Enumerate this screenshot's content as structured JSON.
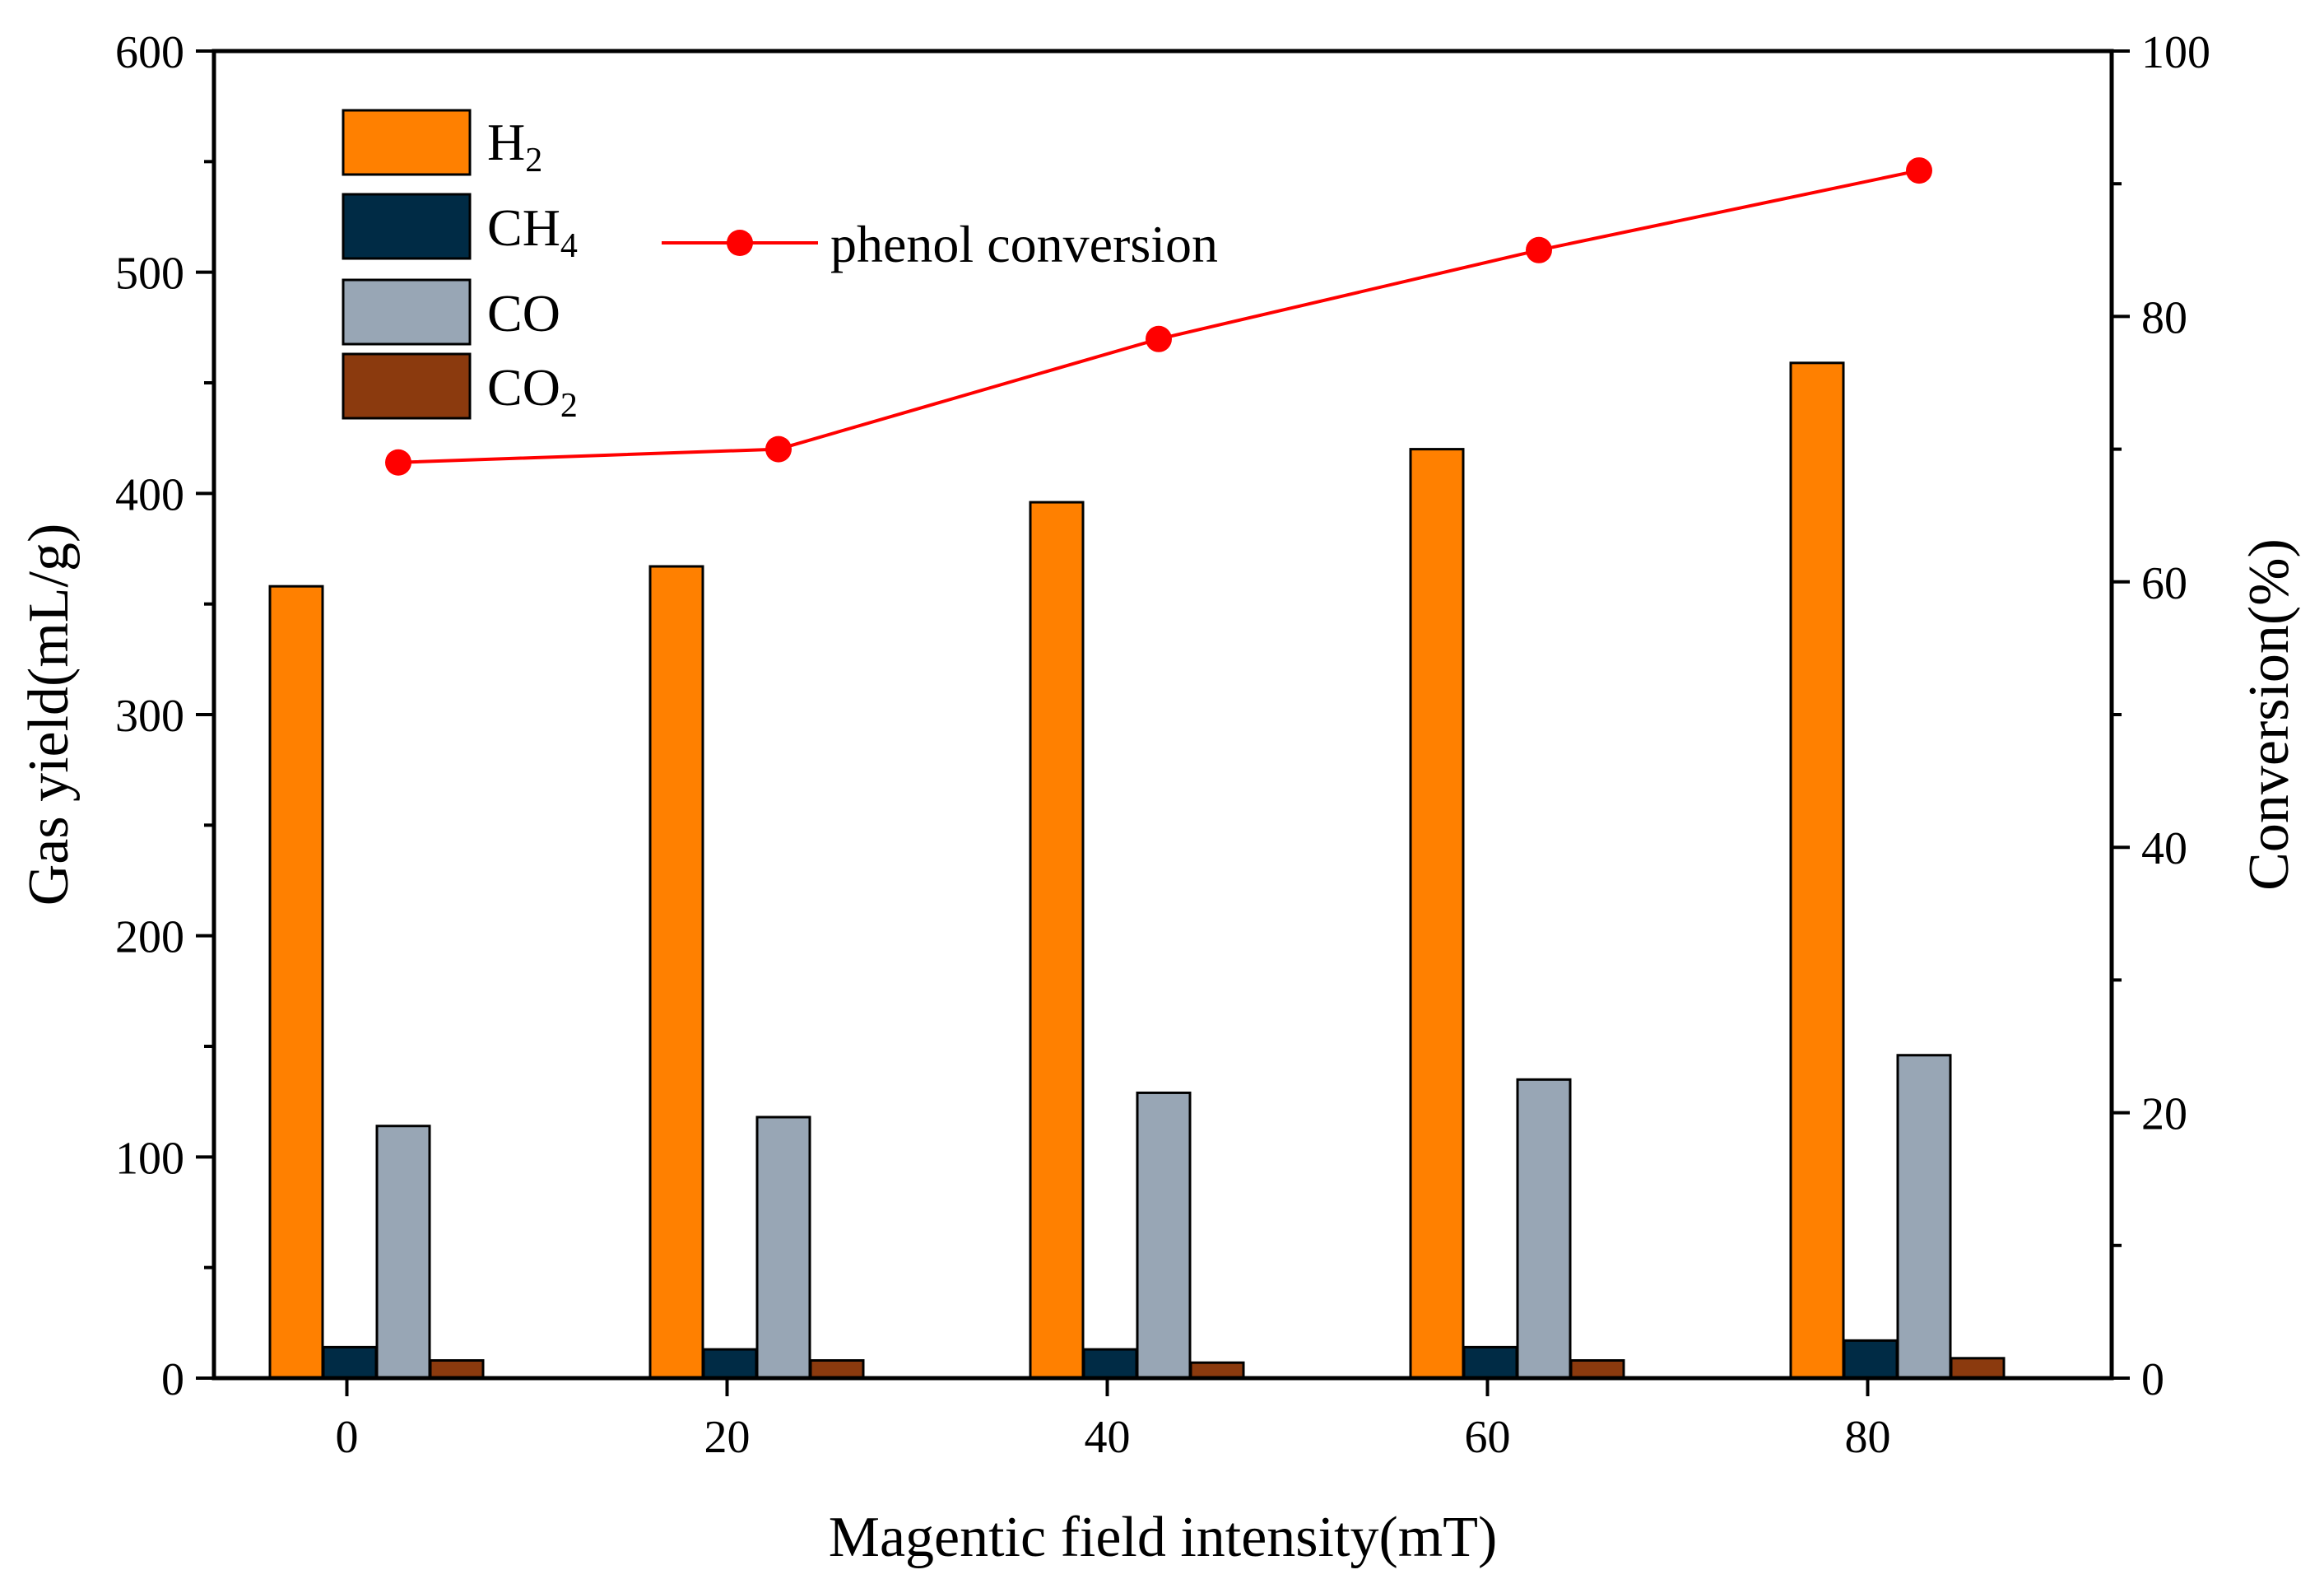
{
  "chart_data": {
    "type": "bar",
    "xlabel": "Magentic field intensity(mT)",
    "ylabel": "Gas yield(mL/g)",
    "y2label": "Conversion(%)",
    "categories": [
      "0",
      "20",
      "40",
      "60",
      "80"
    ],
    "ylim": [
      0,
      600
    ],
    "yticks": [
      "0",
      "100",
      "200",
      "300",
      "400",
      "500",
      "600"
    ],
    "y2lim": [
      0,
      100
    ],
    "y2ticks": [
      "0",
      "20",
      "40",
      "60",
      "80",
      "100"
    ],
    "series": [
      {
        "name": "H2",
        "label_main": "H",
        "label_sub": "2",
        "color": "#FF8000",
        "values": [
          358,
          367,
          396,
          420,
          459
        ]
      },
      {
        "name": "CH4",
        "label_main": "CH",
        "label_sub": "4",
        "color": "#002B45",
        "values": [
          14,
          13,
          13,
          14,
          17
        ]
      },
      {
        "name": "CO",
        "label_main": "CO",
        "label_sub": "",
        "color": "#98A6B5",
        "values": [
          114,
          118,
          129,
          135,
          146
        ]
      },
      {
        "name": "CO2",
        "label_main": "CO",
        "label_sub": "2",
        "color": "#8B3A0E",
        "values": [
          8,
          8,
          7,
          8,
          9
        ]
      }
    ],
    "line_series": {
      "name": "phenol conversion",
      "color": "#FF0000",
      "axis": "right",
      "values": [
        69,
        70,
        78.3,
        85,
        91
      ]
    },
    "legend_position": "top-left"
  }
}
